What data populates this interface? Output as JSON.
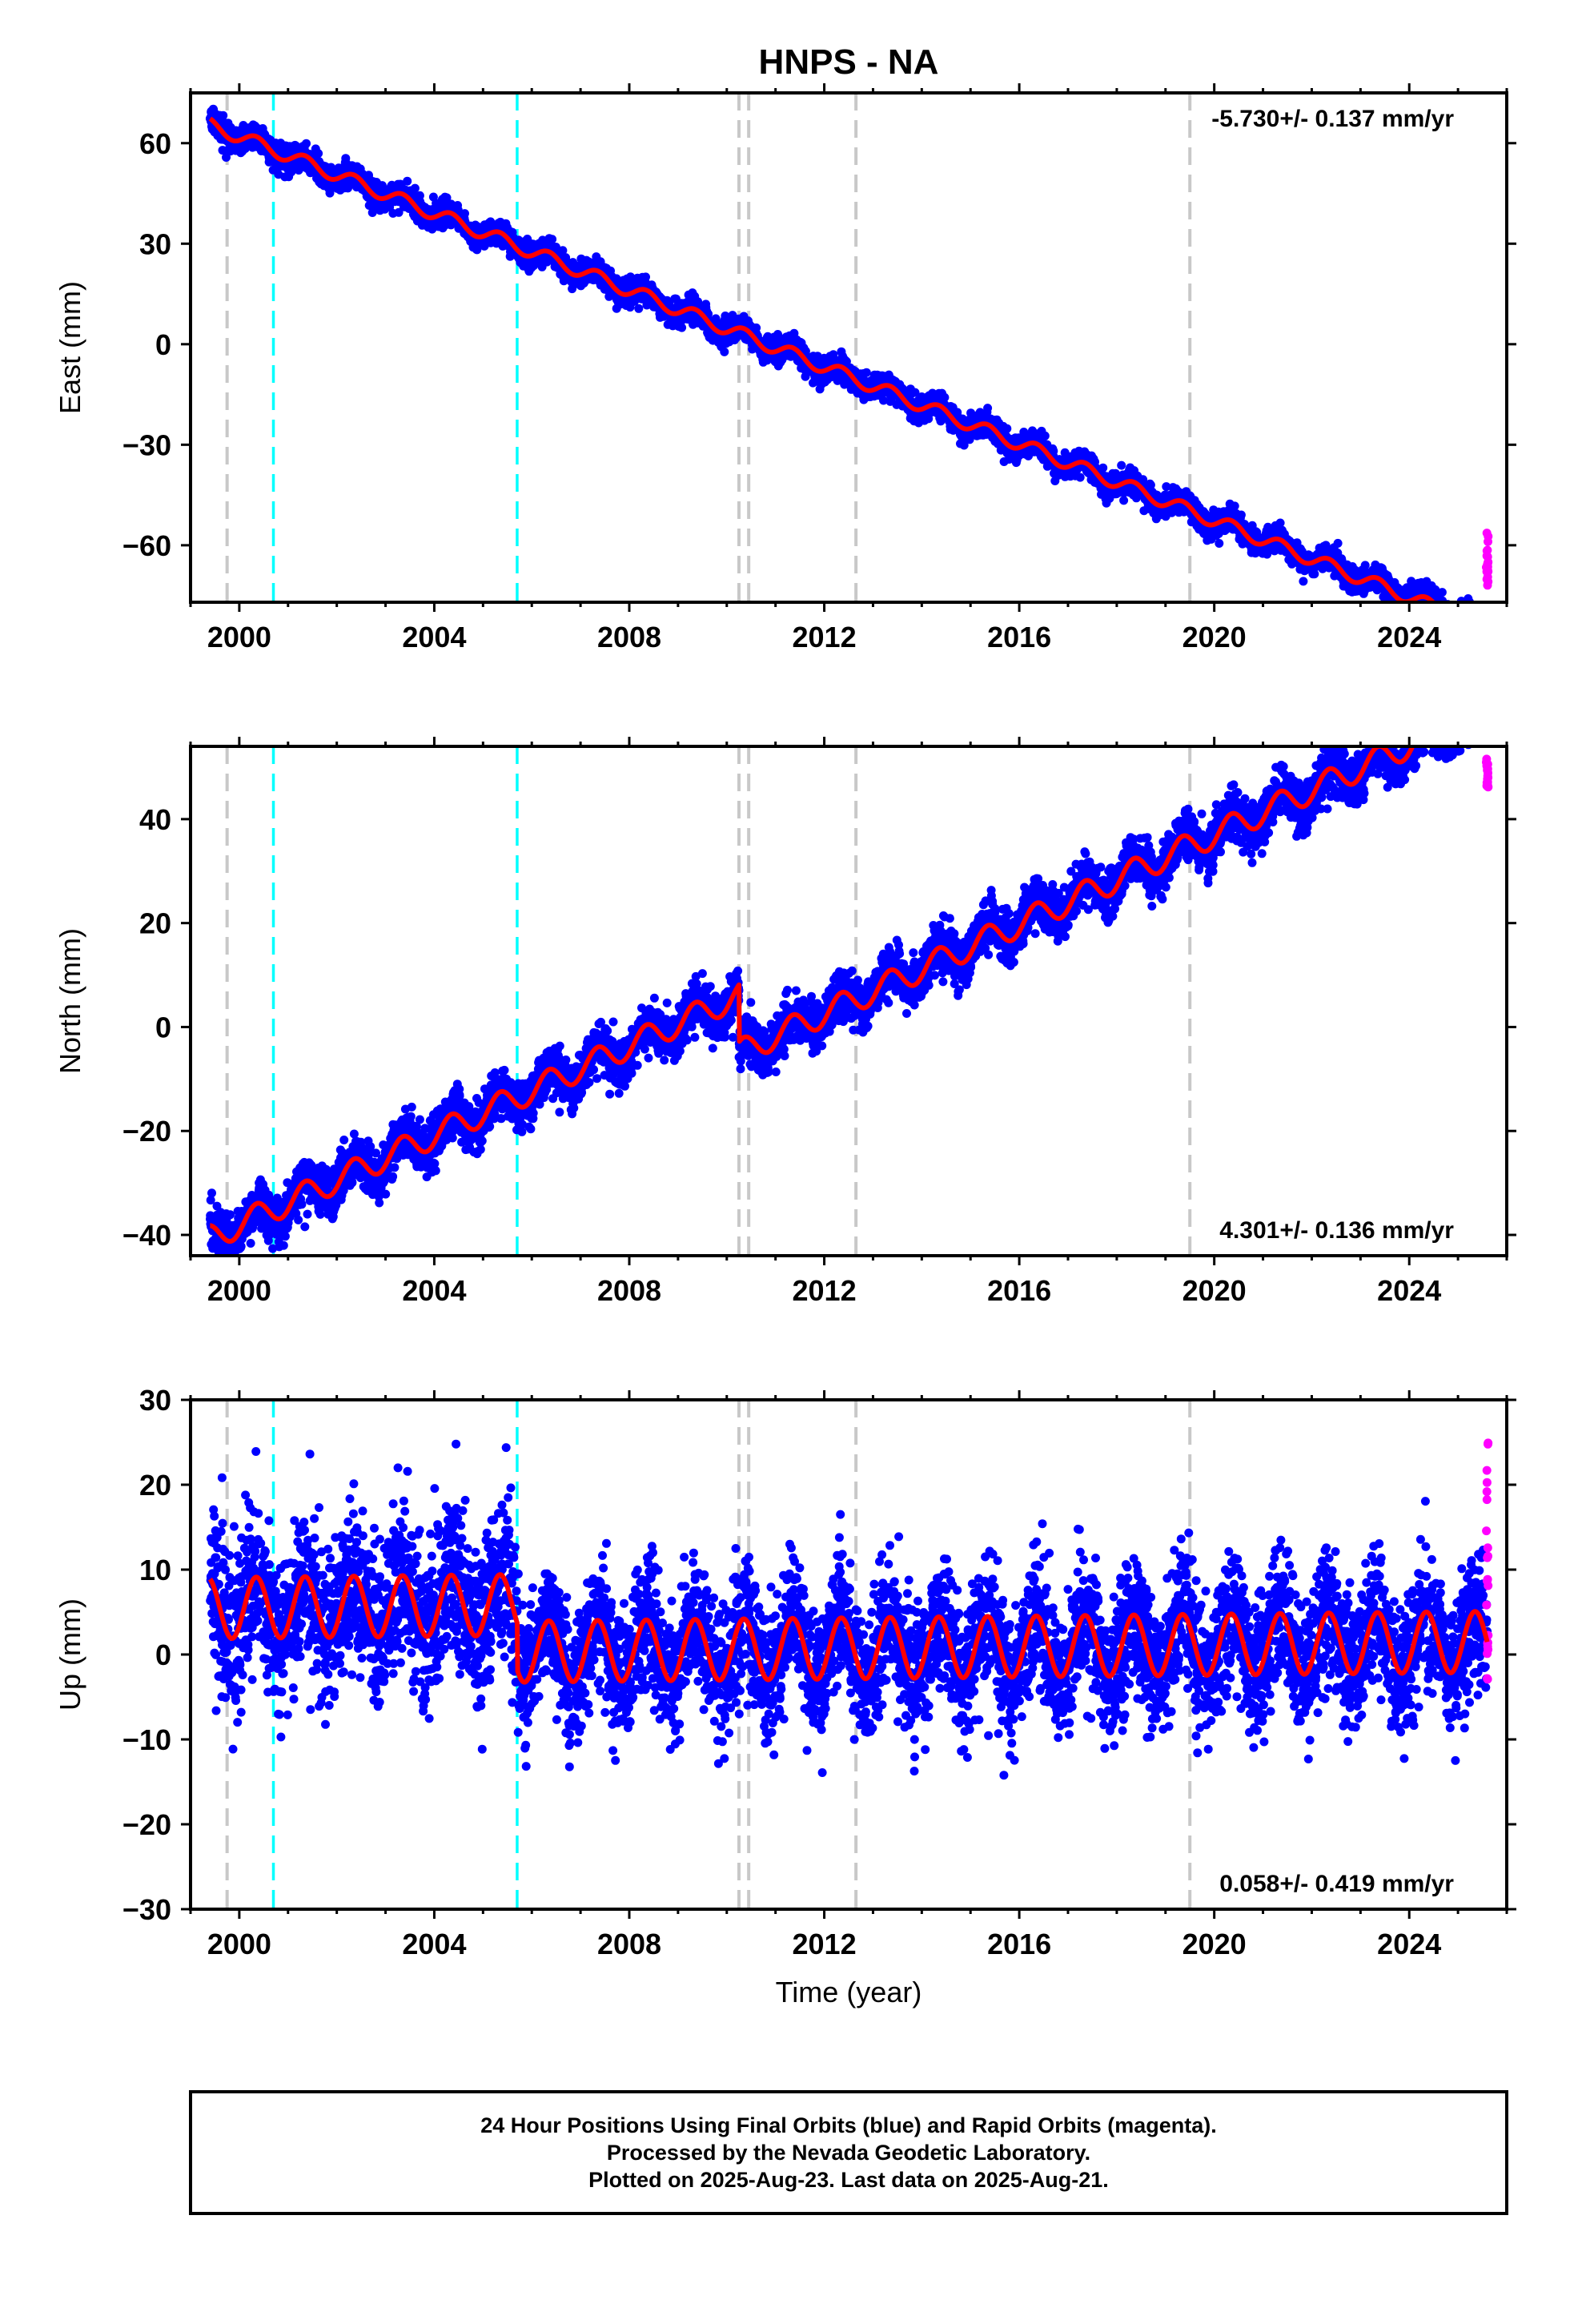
{
  "title": "HNPS - NA",
  "xlabel": "Time (year)",
  "footer": {
    "line1": "24 Hour Positions Using Final Orbits (blue) and Rapid Orbits (magenta).",
    "line2": "Processed by the Nevada Geodetic Laboratory.",
    "line3": "Plotted on 2025-Aug-23. Last data on 2025-Aug-21."
  },
  "colors": {
    "final_orbits": "#0000ff",
    "rapid_orbits": "#ff00ff",
    "model_fit": "#ff0000",
    "equipment_change": "#c8c8c8",
    "earthquake": "#00ffff"
  },
  "chart_data": [
    {
      "type": "scatter",
      "panel": "east",
      "ylabel": "East (mm)",
      "rate_label": "-5.730+/- 0.137 mm/yr",
      "xlim": [
        1999.0,
        2026.0
      ],
      "ylim": [
        -77,
        75
      ],
      "xticks": [
        2000,
        2004,
        2008,
        2012,
        2016,
        2020,
        2024
      ],
      "yticks": [
        -60,
        -30,
        0,
        30,
        60
      ],
      "ytick_labels": [
        "−60",
        "−30",
        "0",
        "30",
        "60"
      ],
      "rate_mm_per_yr": -5.73,
      "start_year": 1999.4,
      "end_year": 2025.6,
      "intercept_at_2000": 62,
      "seasonal_amplitude_mm": 2,
      "noise_mm": 1.8,
      "offsets": [],
      "rapid_orbit_range": [
        -72,
        -56
      ],
      "grey_dashed_lines": [
        1999.75,
        2010.25,
        2010.45,
        2012.65,
        2019.5
      ],
      "cyan_dashed_lines": [
        2000.7,
        2005.7
      ]
    },
    {
      "type": "scatter",
      "panel": "north",
      "ylabel": "North (mm)",
      "rate_label": "4.301+/- 0.136 mm/yr",
      "xlim": [
        1999.0,
        2026.0
      ],
      "ylim": [
        -44,
        54
      ],
      "xticks": [
        2000,
        2004,
        2008,
        2012,
        2016,
        2020,
        2024
      ],
      "yticks": [
        -40,
        -20,
        0,
        20,
        40
      ],
      "ytick_labels": [
        "−40",
        "−20",
        "0",
        "20",
        "40"
      ],
      "rate_mm_per_yr": 4.301,
      "start_year": 1999.4,
      "end_year": 2025.6,
      "intercept_at_2000": -38,
      "seasonal_amplitude_mm": 2.5,
      "noise_mm": 2.2,
      "offsets": [
        {
          "year": 2010.25,
          "mm": -11
        }
      ],
      "rapid_orbit_range": [
        46,
        52
      ],
      "grey_dashed_lines": [
        1999.75,
        2010.25,
        2010.45,
        2012.65,
        2019.5
      ],
      "cyan_dashed_lines": [
        2000.7,
        2005.7
      ]
    },
    {
      "type": "scatter",
      "panel": "up",
      "ylabel": "Up (mm)",
      "rate_label": "0.058+/- 0.419 mm/yr",
      "xlim": [
        1999.0,
        2026.0
      ],
      "ylim": [
        -30,
        30
      ],
      "xticks": [
        2000,
        2004,
        2008,
        2012,
        2016,
        2020,
        2024
      ],
      "yticks": [
        -30,
        -20,
        -10,
        0,
        10,
        20,
        30
      ],
      "ytick_labels": [
        "−30",
        "−20",
        "−10",
        "0",
        "10",
        "20",
        "30"
      ],
      "rate_mm_per_yr": 0.058,
      "start_year": 1999.4,
      "end_year": 2025.6,
      "intercept_at_2000": 5.5,
      "seasonal_amplitude_mm": 3.6,
      "noise_mm": 3.8,
      "offsets": [
        {
          "year": 2005.7,
          "mm": -5.5
        }
      ],
      "rapid_orbit_range": [
        -3,
        25
      ],
      "grey_dashed_lines": [
        1999.75,
        2010.25,
        2010.45,
        2012.65,
        2019.5
      ],
      "cyan_dashed_lines": [
        2000.7,
        2005.7
      ]
    }
  ]
}
